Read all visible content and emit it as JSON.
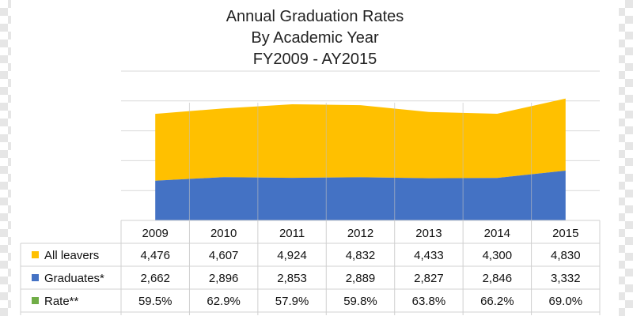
{
  "chart_data": {
    "type": "area",
    "stacked": true,
    "title": [
      "Annual Graduation Rates",
      "By Academic Year",
      "FY2009 - AY2015"
    ],
    "categories": [
      "2009",
      "2010",
      "2011",
      "2012",
      "2013",
      "2014",
      "2015"
    ],
    "series": [
      {
        "name": "All leavers",
        "color": "#FFC000",
        "values": [
          4476,
          4607,
          4924,
          4832,
          4433,
          4300,
          4830
        ],
        "labels": [
          "4,476",
          "4,607",
          "4,924",
          "4,832",
          "4,433",
          "4,300",
          "4,830"
        ]
      },
      {
        "name": "Graduates*",
        "color": "#4472C4",
        "values": [
          2662,
          2896,
          2853,
          2889,
          2827,
          2846,
          3332
        ],
        "labels": [
          "2,662",
          "2,896",
          "2,853",
          "2,889",
          "2,827",
          "2,846",
          "3,332"
        ]
      },
      {
        "name": "Rate**",
        "color": "#70AD47",
        "values": [
          59.5,
          62.9,
          57.9,
          59.8,
          63.8,
          66.2,
          69.0
        ],
        "labels": [
          "59.5%",
          "62.9%",
          "57.9%",
          "59.8%",
          "63.8%",
          "66.2%",
          "69.0%"
        ]
      }
    ],
    "ylim": [
      0,
      10000
    ],
    "grid": true,
    "legend": "data-table"
  }
}
